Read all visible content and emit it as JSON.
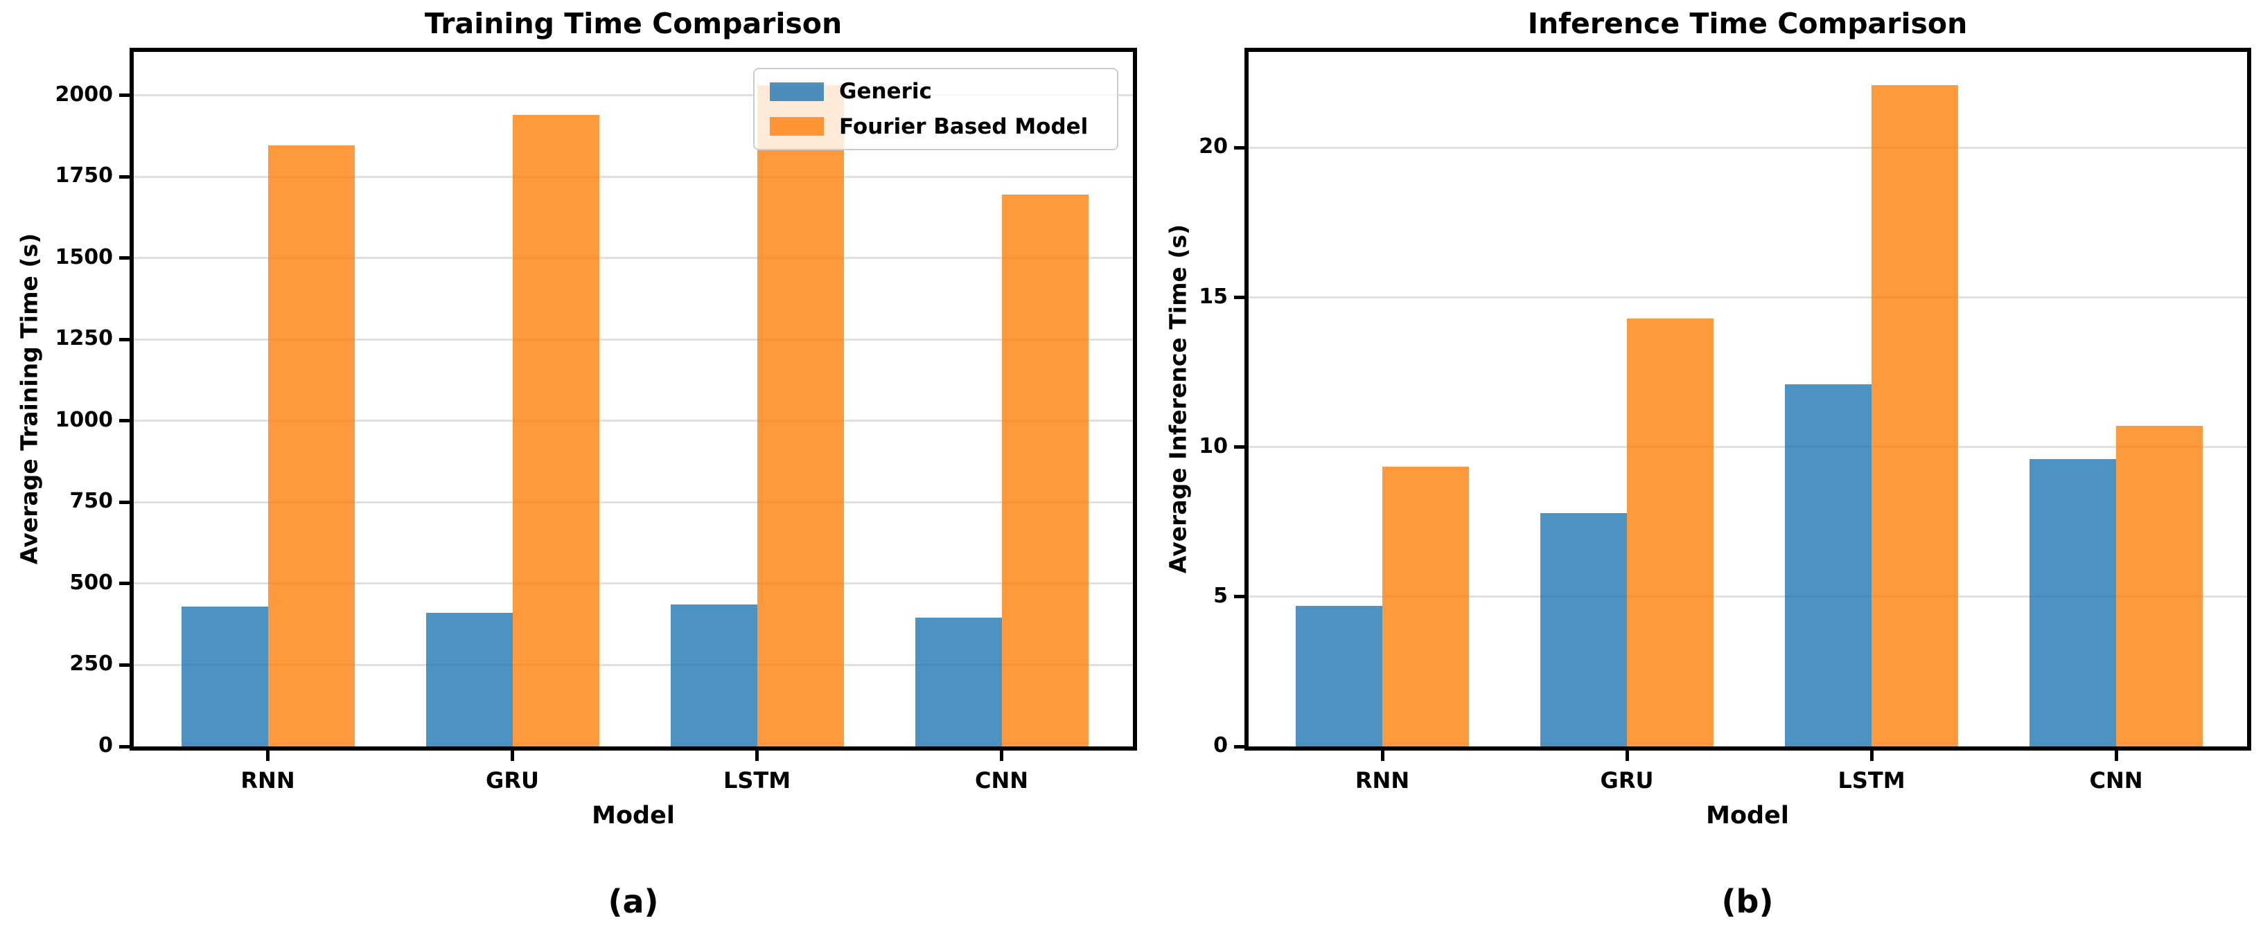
{
  "figure": {
    "captions": [
      "(a)",
      "(b)"
    ]
  },
  "style": {
    "background": "#ffffff",
    "grid_color": "#e0e0e0",
    "spine_color": "#000000",
    "legend_border": "#cccccc",
    "blue": "#1f77b4",
    "orange": "#ff7f0e",
    "blue_fill": "rgba(31,119,180,0.8)",
    "orange_fill": "rgba(255,127,14,0.8)"
  },
  "chart_data": [
    {
      "type": "bar",
      "title": "Training Time Comparison",
      "xlabel": "Model",
      "ylabel": "Average Training Time (s)",
      "categories": [
        "RNN",
        "GRU",
        "LSTM",
        "CNN"
      ],
      "series": [
        {
          "name": "Generic",
          "color": "#1f77b4",
          "fill": "rgba(31,119,180,0.8)",
          "values": [
            430,
            410,
            437,
            396
          ]
        },
        {
          "name": "Fourier Based Model",
          "color": "#ff7f0e",
          "fill": "rgba(255,127,14,0.8)",
          "values": [
            1845,
            1940,
            2030,
            1695
          ]
        }
      ],
      "ylim": [
        0,
        2133
      ],
      "yticks": [
        0,
        250,
        500,
        750,
        1000,
        1250,
        1500,
        1750,
        2000
      ],
      "grid": true,
      "legend": {
        "visible": true,
        "position": "upper right",
        "entries": [
          "Generic",
          "Fourier Based Model"
        ]
      },
      "caption": "(a)"
    },
    {
      "type": "bar",
      "title": "Inference Time Comparison",
      "xlabel": "Model",
      "ylabel": "Average Inference Time (s)",
      "categories": [
        "RNN",
        "GRU",
        "LSTM",
        "CNN"
      ],
      "series": [
        {
          "name": "Generic",
          "color": "#1f77b4",
          "fill": "rgba(31,119,180,0.8)",
          "values": [
            4.7,
            7.8,
            12.1,
            9.6
          ]
        },
        {
          "name": "Fourier Based Model",
          "color": "#ff7f0e",
          "fill": "rgba(255,127,14,0.8)",
          "values": [
            9.35,
            14.3,
            22.1,
            10.7
          ]
        }
      ],
      "ylim": [
        0,
        23.2
      ],
      "yticks": [
        0,
        5,
        10,
        15,
        20
      ],
      "grid": true,
      "legend": {
        "visible": false,
        "position": null,
        "entries": []
      },
      "caption": "(b)"
    }
  ]
}
